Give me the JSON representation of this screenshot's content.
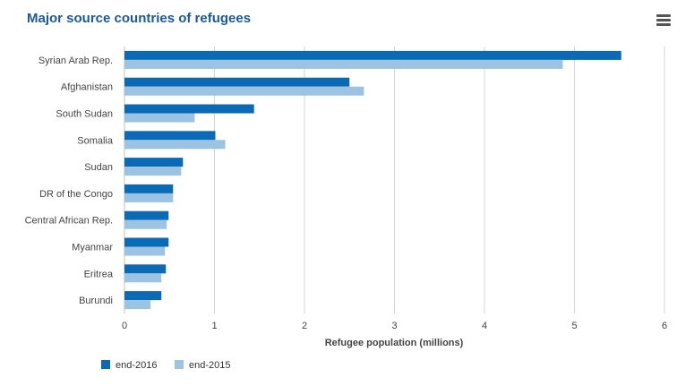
{
  "header": {
    "title": "Major source countries of refugees",
    "menu_icon": "hamburger-menu-icon"
  },
  "colors": {
    "end_2016": "#0a6ab5",
    "end_2015": "#9dc3e3",
    "grid": "#d4d4d4",
    "axis": "#c0c0c0"
  },
  "chart_data": {
    "type": "bar",
    "orientation": "horizontal",
    "title": "Major source countries of refugees",
    "xlabel": "Refugee population (millions)",
    "ylabel": "",
    "xlim": [
      0,
      6
    ],
    "xticks": [
      "0",
      "1",
      "2",
      "3",
      "4",
      "5",
      "6"
    ],
    "grid": true,
    "legend_position": "bottom-left",
    "categories": [
      "Syrian Arab Rep.",
      "Afghanistan",
      "South Sudan",
      "Somalia",
      "Sudan",
      "DR of the Congo",
      "Central African Rep.",
      "Myanmar",
      "Eritrea",
      "Burundi"
    ],
    "series": [
      {
        "name": "end-2016",
        "values": [
          5.52,
          2.5,
          1.44,
          1.01,
          0.65,
          0.54,
          0.49,
          0.49,
          0.46,
          0.41
        ]
      },
      {
        "name": "end-2015",
        "values": [
          4.87,
          2.66,
          0.78,
          1.12,
          0.63,
          0.54,
          0.47,
          0.45,
          0.41,
          0.29
        ]
      }
    ]
  }
}
